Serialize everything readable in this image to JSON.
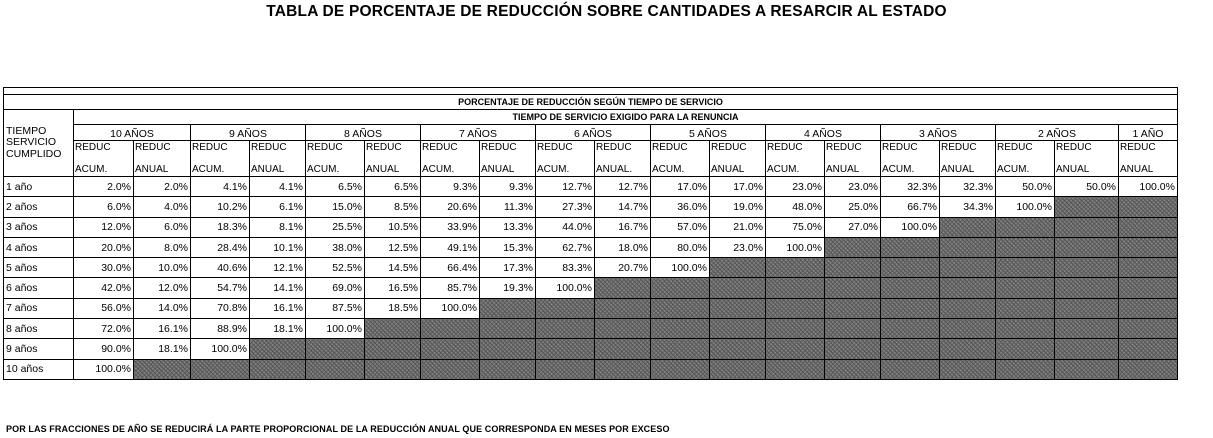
{
  "title": "TABLA DE PORCENTAJE DE REDUCCIÓN SOBRE CANTIDADES A RESARCIR AL ESTADO",
  "table": {
    "main_header": "PORCENTAJE DE REDUCCIÓN SEGÚN TIEMPO DE SERVICIO",
    "sub_header": "TIEMPO DE SERVICIO EXIGIDO PARA LA RENUNCIA",
    "row_header_lines": [
      "TIEMPO",
      "SERVICIO",
      "CUMPLIDO"
    ],
    "year_groups": [
      "10 AÑOS",
      "9 AÑOS",
      "8 AÑOS",
      "7 AÑOS",
      "6 AÑOS",
      "5 AÑOS",
      "4 AÑOS",
      "3 AÑOS",
      "2 AÑOS",
      "1 AÑO"
    ],
    "col_top": "REDUC",
    "col_acum": "ACUM.",
    "col_anual": "ANUAL",
    "col_anual_6": "ANUAL.",
    "rows": [
      {
        "label": "1 año",
        "values": [
          "2.0%",
          "2.0%",
          "4.1%",
          "4.1%",
          "6.5%",
          "6.5%",
          "9.3%",
          "9.3%",
          "12.7%",
          "12.7%",
          "17.0%",
          "17.0%",
          "23.0%",
          "23.0%",
          "32.3%",
          "32.3%",
          "50.0%",
          "50.0%",
          "100.0%"
        ]
      },
      {
        "label": "2 años",
        "values": [
          "6.0%",
          "4.0%",
          "10.2%",
          "6.1%",
          "15.0%",
          "8.5%",
          "20.6%",
          "11.3%",
          "27.3%",
          "14.7%",
          "36.0%",
          "19.0%",
          "48.0%",
          "25.0%",
          "66.7%",
          "34.3%",
          "100.0%"
        ]
      },
      {
        "label": "3 años",
        "values": [
          "12.0%",
          "6.0%",
          "18.3%",
          "8.1%",
          "25.5%",
          "10.5%",
          "33.9%",
          "13.3%",
          "44.0%",
          "16.7%",
          "57.0%",
          "21.0%",
          "75.0%",
          "27.0%",
          "100.0%"
        ]
      },
      {
        "label": "4 años",
        "values": [
          "20.0%",
          "8.0%",
          "28.4%",
          "10.1%",
          "38.0%",
          "12.5%",
          "49.1%",
          "15.3%",
          "62.7%",
          "18.0%",
          "80.0%",
          "23.0%",
          "100.0%"
        ]
      },
      {
        "label": "5 años",
        "values": [
          "30.0%",
          "10.0%",
          "40.6%",
          "12.1%",
          "52.5%",
          "14.5%",
          "66.4%",
          "17.3%",
          "83.3%",
          "20.7%",
          "100.0%"
        ]
      },
      {
        "label": "6 años",
        "values": [
          "42.0%",
          "12.0%",
          "54.7%",
          "14.1%",
          "69.0%",
          "16.5%",
          "85.7%",
          "19.3%",
          "100.0%"
        ]
      },
      {
        "label": "7 años",
        "values": [
          "56.0%",
          "14.0%",
          "70.8%",
          "16.1%",
          "87.5%",
          "18.5%",
          "100.0%"
        ]
      },
      {
        "label": "8 años",
        "values": [
          "72.0%",
          "16.1%",
          "88.9%",
          "18.1%",
          "100.0%"
        ]
      },
      {
        "label": "9 años",
        "values": [
          "90.0%",
          "18.1%",
          "100.0%"
        ]
      },
      {
        "label": "10 años",
        "values": [
          "100.0%"
        ]
      }
    ]
  },
  "note": "POR LAS FRACCIONES DE AÑO SE REDUCIRÁ LA PARTE PROPORCIONAL DE LA REDUCCIÓN ANUAL QUE CORRESPONDA EN MESES POR EXCESO"
}
